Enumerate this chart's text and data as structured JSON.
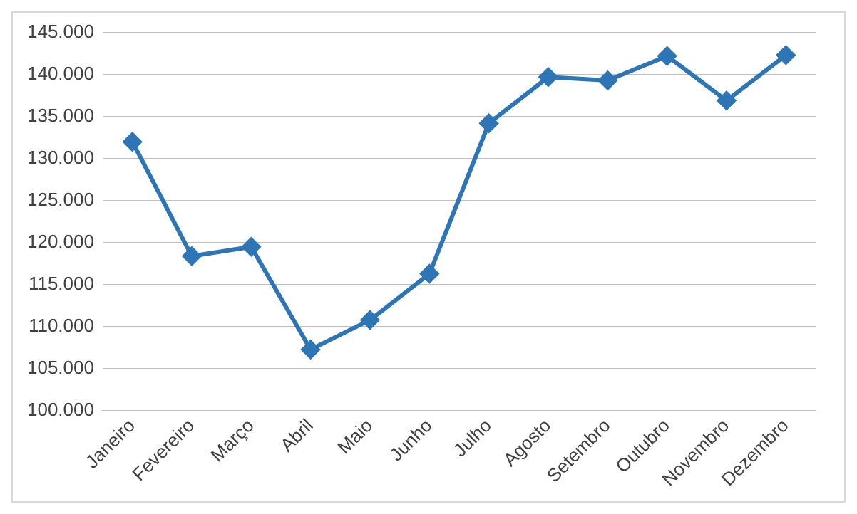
{
  "chart_data": {
    "type": "line",
    "categories": [
      "Janeiro",
      "Fevereiro",
      "Março",
      "Abril",
      "Maio",
      "Junho",
      "Julho",
      "Agosto",
      "Setembro",
      "Outubro",
      "Novembro",
      "Dezembro"
    ],
    "series": [
      {
        "color": "#2e75b6",
        "values": [
          132000,
          118400,
          119500,
          107300,
          110800,
          116300,
          134200,
          139700,
          139300,
          142200,
          136900,
          142300
        ]
      }
    ],
    "ylim": [
      100000,
      145000
    ],
    "yticks": [
      {
        "value": 100000,
        "label": "100.000"
      },
      {
        "value": 105000,
        "label": "105.000"
      },
      {
        "value": 110000,
        "label": "110.000"
      },
      {
        "value": 115000,
        "label": "115.000"
      },
      {
        "value": 120000,
        "label": "120.000"
      },
      {
        "value": 125000,
        "label": "125.000"
      },
      {
        "value": 130000,
        "label": "130.000"
      },
      {
        "value": 135000,
        "label": "135.000"
      },
      {
        "value": 140000,
        "label": "140.000"
      },
      {
        "value": 145000,
        "label": "145.000"
      }
    ],
    "grid": "y",
    "legend": false,
    "marker": "diamond",
    "line_style": "solid"
  }
}
